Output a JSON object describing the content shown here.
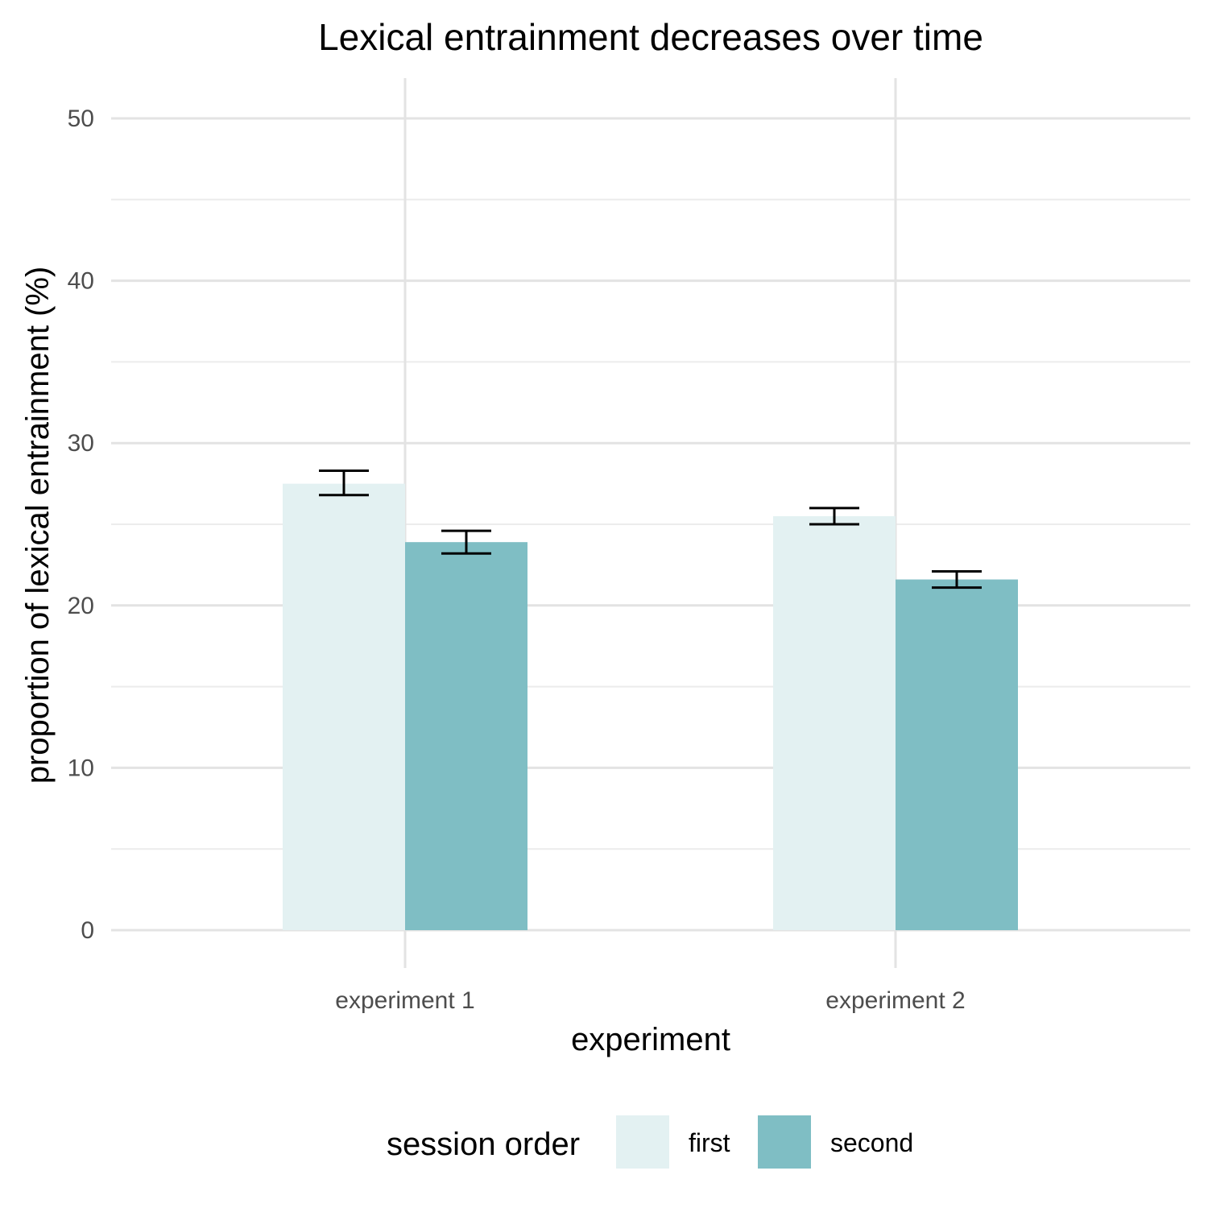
{
  "chart_data": {
    "type": "bar",
    "title": "Lexical entrainment decreases over time",
    "xlabel": "experiment",
    "ylabel": "proportion of lexical entrainment (%)",
    "categories": [
      "experiment 1",
      "experiment 2"
    ],
    "ylim": [
      0,
      50
    ],
    "yticks": [
      0,
      10,
      20,
      30,
      40,
      50
    ],
    "grid": true,
    "legend": {
      "title": "session order",
      "position": "bottom"
    },
    "series": [
      {
        "name": "first",
        "color": "#e3f1f2",
        "values": [
          27.5,
          25.5
        ],
        "error_low": [
          26.8,
          25.0
        ],
        "error_high": [
          28.3,
          26.0
        ]
      },
      {
        "name": "second",
        "color": "#7fbec4",
        "values": [
          23.9,
          21.6
        ],
        "error_low": [
          23.2,
          21.1
        ],
        "error_high": [
          24.6,
          22.1
        ]
      }
    ]
  }
}
